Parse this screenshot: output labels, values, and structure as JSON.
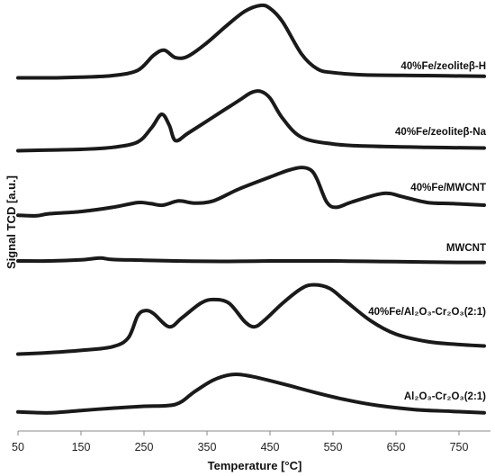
{
  "chart_data": {
    "type": "line",
    "xlabel": "Temperature [°C]",
    "ylabel": "Signal TCD [a.u.]",
    "xlim": [
      50,
      790
    ],
    "xticks": [
      50,
      150,
      250,
      350,
      450,
      550,
      650,
      750
    ],
    "grid": false,
    "legend": "inline labels",
    "series": [
      {
        "name": "40%Fe/zeoliteβ-H",
        "points": [
          [
            50,
            0.03
          ],
          [
            100,
            0.03
          ],
          [
            150,
            0.04
          ],
          [
            200,
            0.06
          ],
          [
            240,
            0.13
          ],
          [
            265,
            0.33
          ],
          [
            282,
            0.4
          ],
          [
            300,
            0.3
          ],
          [
            320,
            0.32
          ],
          [
            350,
            0.5
          ],
          [
            380,
            0.72
          ],
          [
            410,
            0.92
          ],
          [
            435,
            1.0
          ],
          [
            450,
            0.96
          ],
          [
            470,
            0.78
          ],
          [
            500,
            0.35
          ],
          [
            525,
            0.15
          ],
          [
            550,
            0.1
          ],
          [
            600,
            0.07
          ],
          [
            700,
            0.06
          ],
          [
            790,
            0.05
          ]
        ]
      },
      {
        "name": "40%Fe/zeoliteβ-Na",
        "points": [
          [
            50,
            0.02
          ],
          [
            100,
            0.03
          ],
          [
            150,
            0.04
          ],
          [
            200,
            0.07
          ],
          [
            240,
            0.15
          ],
          [
            262,
            0.36
          ],
          [
            278,
            0.56
          ],
          [
            290,
            0.4
          ],
          [
            300,
            0.17
          ],
          [
            320,
            0.28
          ],
          [
            360,
            0.52
          ],
          [
            400,
            0.76
          ],
          [
            420,
            0.88
          ],
          [
            435,
            0.9
          ],
          [
            450,
            0.8
          ],
          [
            470,
            0.5
          ],
          [
            500,
            0.22
          ],
          [
            550,
            0.12
          ],
          [
            600,
            0.09
          ],
          [
            700,
            0.07
          ],
          [
            790,
            0.06
          ]
        ]
      },
      {
        "name": "40%Fe/MWCNT",
        "points": [
          [
            50,
            0.03
          ],
          [
            80,
            0.02
          ],
          [
            100,
            0.06
          ],
          [
            150,
            0.1
          ],
          [
            200,
            0.18
          ],
          [
            240,
            0.27
          ],
          [
            260,
            0.25
          ],
          [
            280,
            0.22
          ],
          [
            305,
            0.3
          ],
          [
            330,
            0.26
          ],
          [
            360,
            0.3
          ],
          [
            400,
            0.52
          ],
          [
            450,
            0.75
          ],
          [
            480,
            0.88
          ],
          [
            500,
            0.93
          ],
          [
            515,
            0.88
          ],
          [
            525,
            0.7
          ],
          [
            540,
            0.28
          ],
          [
            555,
            0.18
          ],
          [
            580,
            0.28
          ],
          [
            620,
            0.42
          ],
          [
            640,
            0.44
          ],
          [
            660,
            0.38
          ],
          [
            700,
            0.27
          ],
          [
            740,
            0.25
          ],
          [
            790,
            0.22
          ]
        ]
      },
      {
        "name": "MWCNT",
        "points": [
          [
            50,
            0.3
          ],
          [
            100,
            0.3
          ],
          [
            150,
            0.33
          ],
          [
            180,
            0.38
          ],
          [
            200,
            0.34
          ],
          [
            250,
            0.32
          ],
          [
            300,
            0.3
          ],
          [
            350,
            0.29
          ],
          [
            400,
            0.29
          ],
          [
            450,
            0.3
          ],
          [
            500,
            0.3
          ],
          [
            550,
            0.3
          ],
          [
            600,
            0.29
          ],
          [
            650,
            0.28
          ],
          [
            700,
            0.27
          ],
          [
            750,
            0.26
          ],
          [
            790,
            0.26
          ]
        ]
      },
      {
        "name": "40%Fe/Al₂O₃-Cr₂O₃(2:1)",
        "points": [
          [
            50,
            0.03
          ],
          [
            100,
            0.05
          ],
          [
            150,
            0.08
          ],
          [
            200,
            0.13
          ],
          [
            225,
            0.25
          ],
          [
            240,
            0.55
          ],
          [
            252,
            0.62
          ],
          [
            265,
            0.58
          ],
          [
            290,
            0.4
          ],
          [
            310,
            0.52
          ],
          [
            340,
            0.72
          ],
          [
            360,
            0.77
          ],
          [
            385,
            0.72
          ],
          [
            410,
            0.47
          ],
          [
            425,
            0.4
          ],
          [
            440,
            0.48
          ],
          [
            470,
            0.72
          ],
          [
            500,
            0.92
          ],
          [
            520,
            0.97
          ],
          [
            545,
            0.92
          ],
          [
            570,
            0.75
          ],
          [
            610,
            0.48
          ],
          [
            650,
            0.3
          ],
          [
            700,
            0.2
          ],
          [
            750,
            0.16
          ],
          [
            790,
            0.14
          ]
        ]
      },
      {
        "name": "Al₂O₃-Cr₂O₃(2:1)",
        "points": [
          [
            50,
            0.12
          ],
          [
            100,
            0.1
          ],
          [
            150,
            0.15
          ],
          [
            200,
            0.2
          ],
          [
            250,
            0.24
          ],
          [
            300,
            0.28
          ],
          [
            330,
            0.55
          ],
          [
            360,
            0.8
          ],
          [
            390,
            0.92
          ],
          [
            420,
            0.88
          ],
          [
            470,
            0.72
          ],
          [
            520,
            0.54
          ],
          [
            570,
            0.38
          ],
          [
            620,
            0.26
          ],
          [
            680,
            0.17
          ],
          [
            740,
            0.13
          ],
          [
            790,
            0.1
          ]
        ]
      }
    ]
  }
}
